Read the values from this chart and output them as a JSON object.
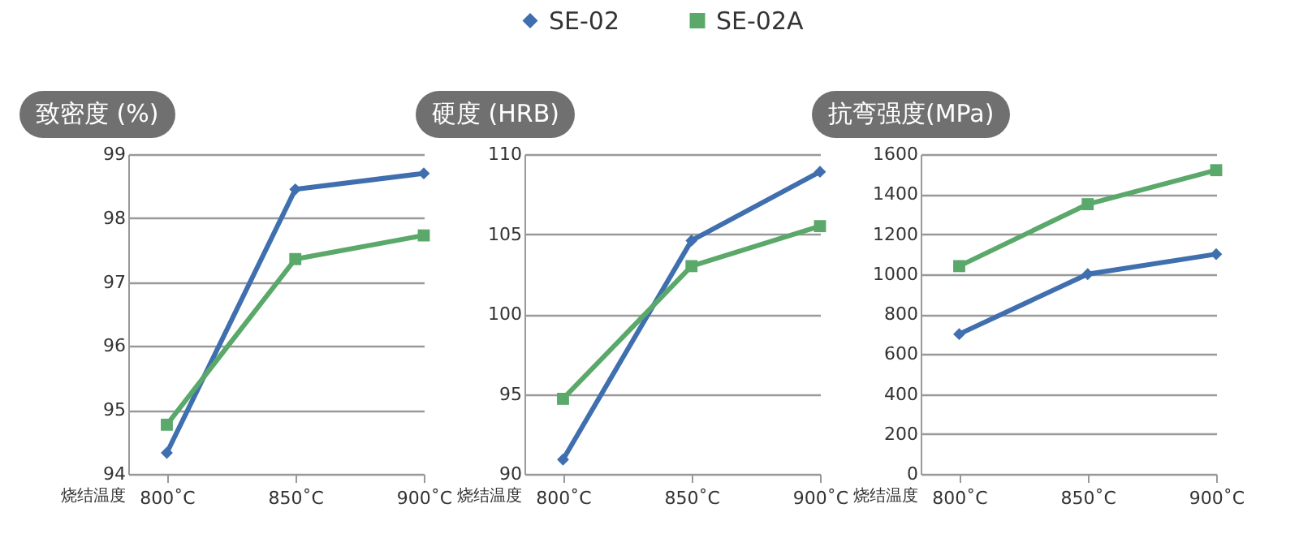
{
  "chart_data": [
    {
      "type": "line",
      "title": "致密度 (%)",
      "xlabel": "烧结温度",
      "categories": [
        "800˚C",
        "850˚C",
        "900˚C"
      ],
      "ylim": [
        94,
        99
      ],
      "yticks": [
        94,
        95,
        96,
        97,
        98,
        99
      ],
      "grid": "y",
      "legend": "top",
      "series": [
        {
          "name": "SE-02",
          "color": "#3f6fae",
          "marker": "diamond",
          "values": [
            94.33,
            98.45,
            98.7
          ]
        },
        {
          "name": "SE-02A",
          "color": "#5aa86a",
          "marker": "square",
          "values": [
            94.77,
            97.36,
            97.73
          ]
        }
      ]
    },
    {
      "type": "line",
      "title": "硬度 (HRB)",
      "xlabel": "烧结温度",
      "categories": [
        "800˚C",
        "850˚C",
        "900˚C"
      ],
      "ylim": [
        90,
        110
      ],
      "yticks": [
        90,
        95,
        100,
        105,
        110
      ],
      "grid": "y",
      "series": [
        {
          "name": "SE-02",
          "color": "#3f6fae",
          "marker": "diamond",
          "values": [
            90.9,
            104.6,
            108.9
          ]
        },
        {
          "name": "SE-02A",
          "color": "#5aa86a",
          "marker": "square",
          "values": [
            94.7,
            103.0,
            105.5
          ]
        }
      ]
    },
    {
      "type": "line",
      "title": "抗弯强度(MPa)",
      "xlabel": "烧结温度",
      "categories": [
        "800˚C",
        "850˚C",
        "900˚C"
      ],
      "ylim": [
        0,
        1600
      ],
      "yticks": [
        0,
        200,
        400,
        600,
        800,
        1000,
        1200,
        1400,
        1600
      ],
      "grid": "y",
      "series": [
        {
          "name": "SE-02",
          "color": "#3f6fae",
          "marker": "diamond",
          "values": [
            700,
            1000,
            1100
          ]
        },
        {
          "name": "SE-02A",
          "color": "#5aa86a",
          "marker": "square",
          "values": [
            1040,
            1350,
            1520
          ]
        }
      ]
    }
  ]
}
